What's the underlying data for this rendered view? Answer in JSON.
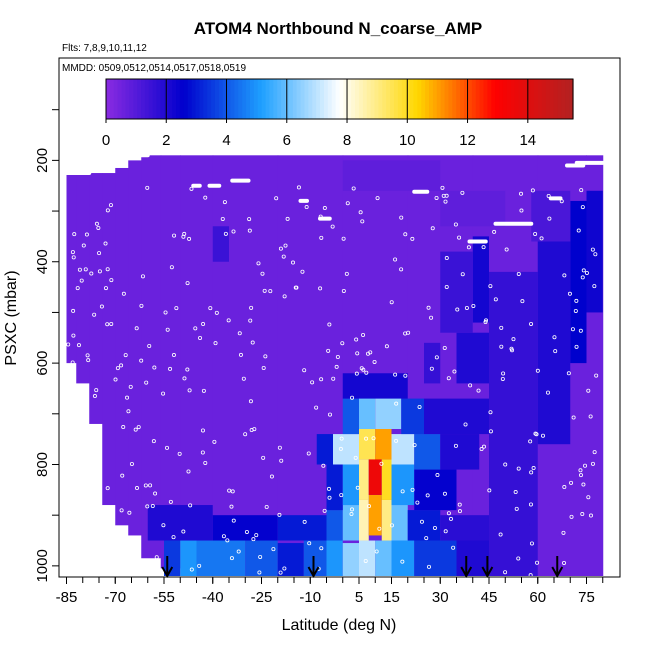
{
  "chart_data": {
    "type": "heatmap",
    "title": "ATOM4 Northbound N_coarse_AMP",
    "subtitle_flights": "Flts: 7,8,9,10,11,12",
    "subtitle_dates": "MMDD: 0509,0512,0514,0517,0518,0519",
    "xlabel": "Latitude (deg N)",
    "ylabel": "PSXC (mbar)",
    "xlim": [
      -87,
      85
    ],
    "ylim": [
      1020,
      0
    ],
    "x_ticks": [
      -85,
      -70,
      -55,
      -40,
      -25,
      -10,
      5,
      15,
      30,
      45,
      60,
      75
    ],
    "y_ticks": [
      200,
      400,
      600,
      800,
      1000
    ],
    "colorbar": {
      "min": 0,
      "max": 15.5,
      "ticks": [
        0,
        2,
        4,
        6,
        8,
        10,
        12,
        14
      ],
      "colors": [
        "#8a2be2",
        "#0000cd",
        "#1ea0ff",
        "#ffffff",
        "#ffd700",
        "#ff0000",
        "#b22222"
      ]
    },
    "arrows_lat": [
      -54,
      -9,
      38,
      44.5,
      66
    ],
    "columns": [
      {
        "x0": -85,
        "x1": -82,
        "top": 225,
        "bot": 600
      },
      {
        "x0": -82,
        "x1": -78,
        "top": 225,
        "bot": 640
      },
      {
        "x0": -78,
        "x1": -74,
        "top": 225,
        "bot": 720
      },
      {
        "x0": -74,
        "x1": -70,
        "top": 225,
        "bot": 880
      },
      {
        "x0": -70,
        "x1": -66,
        "top": 215,
        "bot": 920
      },
      {
        "x0": -66,
        "x1": -62,
        "top": 200,
        "bot": 940
      },
      {
        "x0": -62,
        "x1": -56,
        "top": 190,
        "bot": 985
      },
      {
        "x0": -56,
        "x1": -50,
        "top": 190,
        "bot": 1005
      },
      {
        "x0": -50,
        "x1": -40,
        "top": 190,
        "bot": 1020
      },
      {
        "x0": -40,
        "x1": -20,
        "top": 190,
        "bot": 1020
      },
      {
        "x0": -20,
        "x1": 0,
        "top": 190,
        "bot": 1020
      },
      {
        "x0": 0,
        "x1": 20,
        "top": 190,
        "bot": 1020
      },
      {
        "x0": 20,
        "x1": 40,
        "top": 190,
        "bot": 1020
      },
      {
        "x0": 40,
        "x1": 60,
        "top": 190,
        "bot": 1020
      },
      {
        "x0": 60,
        "x1": 75,
        "top": 190,
        "bot": 1020
      },
      {
        "x0": 75,
        "x1": 80,
        "top": 190,
        "bot": 1020
      }
    ],
    "cells": [
      {
        "x0": -55,
        "x1": -50,
        "y0": 930,
        "y1": 1020,
        "v": 3.5
      },
      {
        "x0": -50,
        "x1": -45,
        "y0": 950,
        "y1": 1020,
        "v": 5
      },
      {
        "x0": -45,
        "x1": -30,
        "y0": 950,
        "y1": 1020,
        "v": 4.5
      },
      {
        "x0": -30,
        "x1": -20,
        "y0": 950,
        "y1": 1020,
        "v": 4
      },
      {
        "x0": -20,
        "x1": -12,
        "y0": 955,
        "y1": 1020,
        "v": 3
      },
      {
        "x0": -12,
        "x1": -5,
        "y0": 950,
        "y1": 1020,
        "v": 4
      },
      {
        "x0": -5,
        "x1": 0,
        "y0": 950,
        "y1": 1020,
        "v": 5
      },
      {
        "x0": 0,
        "x1": 5,
        "y0": 955,
        "y1": 1020,
        "v": 6.5
      },
      {
        "x0": 5,
        "x1": 10,
        "y0": 950,
        "y1": 1020,
        "v": 7
      },
      {
        "x0": 10,
        "x1": 15,
        "y0": 950,
        "y1": 1020,
        "v": 6
      },
      {
        "x0": 15,
        "x1": 22,
        "y0": 950,
        "y1": 1020,
        "v": 5
      },
      {
        "x0": 22,
        "x1": 35,
        "y0": 950,
        "y1": 1020,
        "v": 3.5
      },
      {
        "x0": 35,
        "x1": 55,
        "y0": 950,
        "y1": 1020,
        "v": 2
      },
      {
        "x0": -60,
        "x1": -40,
        "y0": 880,
        "y1": 950,
        "v": 2
      },
      {
        "x0": -40,
        "x1": -20,
        "y0": 900,
        "y1": 950,
        "v": 2.5
      },
      {
        "x0": -20,
        "x1": -5,
        "y0": 900,
        "y1": 950,
        "v": 3
      },
      {
        "x0": -5,
        "x1": 0,
        "y0": 890,
        "y1": 950,
        "v": 4
      },
      {
        "x0": 0,
        "x1": 5,
        "y0": 880,
        "y1": 950,
        "v": 6
      },
      {
        "x0": 5,
        "x1": 8,
        "y0": 870,
        "y1": 950,
        "v": 8.5
      },
      {
        "x0": 8,
        "x1": 12,
        "y0": 860,
        "y1": 940,
        "v": 11
      },
      {
        "x0": 12,
        "x1": 15,
        "y0": 870,
        "y1": 950,
        "v": 9
      },
      {
        "x0": 15,
        "x1": 20,
        "y0": 880,
        "y1": 950,
        "v": 6
      },
      {
        "x0": 20,
        "x1": 30,
        "y0": 890,
        "y1": 950,
        "v": 3
      },
      {
        "x0": 30,
        "x1": 45,
        "y0": 900,
        "y1": 950,
        "v": 1.8
      },
      {
        "x0": -5,
        "x1": 0,
        "y0": 800,
        "y1": 890,
        "v": 3
      },
      {
        "x0": 0,
        "x1": 5,
        "y0": 800,
        "y1": 880,
        "v": 5
      },
      {
        "x0": 5,
        "x1": 8,
        "y0": 790,
        "y1": 870,
        "v": 9
      },
      {
        "x0": 8,
        "x1": 12,
        "y0": 780,
        "y1": 860,
        "v": 13.5
      },
      {
        "x0": 12,
        "x1": 15,
        "y0": 790,
        "y1": 870,
        "v": 10
      },
      {
        "x0": 15,
        "x1": 22,
        "y0": 800,
        "y1": 880,
        "v": 5
      },
      {
        "x0": 22,
        "x1": 35,
        "y0": 810,
        "y1": 890,
        "v": 2.5
      },
      {
        "x0": -8,
        "x1": -3,
        "y0": 740,
        "y1": 800,
        "v": 3
      },
      {
        "x0": -3,
        "x1": 5,
        "y0": 740,
        "y1": 800,
        "v": 7
      },
      {
        "x0": 5,
        "x1": 10,
        "y0": 730,
        "y1": 790,
        "v": 9.5
      },
      {
        "x0": 10,
        "x1": 15,
        "y0": 730,
        "y1": 790,
        "v": 11
      },
      {
        "x0": 15,
        "x1": 22,
        "y0": 740,
        "y1": 800,
        "v": 7
      },
      {
        "x0": 22,
        "x1": 30,
        "y0": 740,
        "y1": 810,
        "v": 4
      },
      {
        "x0": 30,
        "x1": 42,
        "y0": 740,
        "y1": 810,
        "v": 2
      },
      {
        "x0": 0,
        "x1": 5,
        "y0": 670,
        "y1": 740,
        "v": 4
      },
      {
        "x0": 5,
        "x1": 10,
        "y0": 660,
        "y1": 730,
        "v": 6
      },
      {
        "x0": 10,
        "x1": 18,
        "y0": 660,
        "y1": 730,
        "v": 6.5
      },
      {
        "x0": 18,
        "x1": 25,
        "y0": 670,
        "y1": 740,
        "v": 3.5
      },
      {
        "x0": 25,
        "x1": 45,
        "y0": 670,
        "y1": 740,
        "v": 2
      },
      {
        "x0": 0,
        "x1": 20,
        "y0": 620,
        "y1": 670,
        "v": 2.2
      },
      {
        "x0": 35,
        "x1": 45,
        "y0": 540,
        "y1": 640,
        "v": 2
      },
      {
        "x0": 45,
        "x1": 60,
        "y0": 420,
        "y1": 1020,
        "v": 1.6
      },
      {
        "x0": 60,
        "x1": 70,
        "y0": 360,
        "y1": 760,
        "v": 2
      },
      {
        "x0": 70,
        "x1": 75,
        "y0": 280,
        "y1": 600,
        "v": 2.6
      },
      {
        "x0": 75,
        "x1": 80,
        "y0": 260,
        "y1": 500,
        "v": 2.3
      },
      {
        "x0": 58,
        "x1": 70,
        "y0": 260,
        "y1": 360,
        "v": 1.2
      },
      {
        "x0": 40,
        "x1": 45,
        "y0": 350,
        "y1": 520,
        "v": 2.2
      },
      {
        "x0": 30,
        "x1": 40,
        "y0": 380,
        "y1": 540,
        "v": 1.5
      },
      {
        "x0": 25,
        "x1": 30,
        "y0": 560,
        "y1": 640,
        "v": 1.6
      },
      {
        "x0": -40,
        "x1": -35,
        "y0": 330,
        "y1": 400,
        "v": 1.5
      },
      {
        "x0": 30,
        "x1": 50,
        "y0": 260,
        "y1": 330,
        "v": 0.8
      },
      {
        "x0": 0,
        "x1": 30,
        "y0": 200,
        "y1": 260,
        "v": 0.8
      }
    ],
    "track_segments": [
      {
        "x0": -85,
        "x1": -78,
        "p": 225
      },
      {
        "x0": -78,
        "x1": -74,
        "p": 220
      },
      {
        "x0": -68,
        "x1": -60,
        "p": 190
      },
      {
        "x0": -46,
        "x1": -44,
        "p": 250
      },
      {
        "x0": -41,
        "x1": -38,
        "p": 250
      },
      {
        "x0": -34,
        "x1": -29,
        "p": 240
      },
      {
        "x0": -13,
        "x1": -11,
        "p": 280
      },
      {
        "x0": -7,
        "x1": -4,
        "p": 315
      },
      {
        "x0": 22,
        "x1": 26,
        "p": 262
      },
      {
        "x0": 39,
        "x1": 44,
        "p": 360
      },
      {
        "x0": 47,
        "x1": 58,
        "p": 325
      },
      {
        "x0": 69,
        "x1": 74,
        "p": 210
      },
      {
        "x0": 72,
        "x1": 80,
        "p": 205
      },
      {
        "x0": 64,
        "x1": 67,
        "p": 275
      }
    ]
  }
}
